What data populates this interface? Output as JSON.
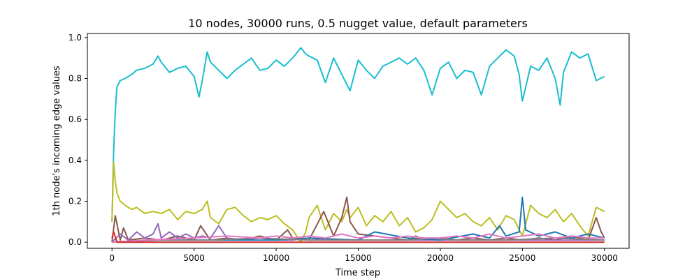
{
  "chart_data": {
    "type": "line",
    "title": "10 nodes, 30000 runs, 0.5 nugget value, default parameters",
    "xlabel": "Time step",
    "ylabel": "1th node's incoming edge values",
    "xlim": [
      -1500,
      31500
    ],
    "ylim": [
      -0.03,
      1.02
    ],
    "x_ticks": [
      0,
      5000,
      10000,
      15000,
      20000,
      25000,
      30000
    ],
    "x_tick_labels": [
      "0",
      "5000",
      "10000",
      "15000",
      "20000",
      "25000",
      "30000"
    ],
    "y_ticks": [
      0.0,
      0.2,
      0.4,
      0.6,
      0.8,
      1.0
    ],
    "y_tick_labels": [
      "0.0",
      "0.2",
      "0.4",
      "0.6",
      "0.8",
      "1.0"
    ],
    "grid": false,
    "legend": "none",
    "series": [
      {
        "color": "#17becf",
        "x": [
          0,
          100,
          200,
          300,
          500,
          800,
          1200,
          1500,
          2000,
          2500,
          2800,
          3000,
          3500,
          4000,
          4500,
          5000,
          5300,
          5500,
          5800,
          6000,
          6500,
          7000,
          7500,
          8000,
          8500,
          9000,
          9500,
          10000,
          10500,
          11000,
          11500,
          11800,
          12000,
          12500,
          13000,
          13500,
          14000,
          14500,
          15000,
          15500,
          16000,
          16500,
          17000,
          17500,
          18000,
          18500,
          19000,
          19500,
          20000,
          20500,
          21000,
          21500,
          22000,
          22500,
          23000,
          23500,
          24000,
          24500,
          24800,
          25000,
          25500,
          26000,
          26500,
          27000,
          27300,
          27500,
          28000,
          28500,
          29000,
          29500,
          30000
        ],
        "y": [
          0.1,
          0.45,
          0.64,
          0.76,
          0.79,
          0.8,
          0.82,
          0.84,
          0.85,
          0.87,
          0.91,
          0.88,
          0.83,
          0.85,
          0.86,
          0.81,
          0.71,
          0.79,
          0.93,
          0.88,
          0.84,
          0.8,
          0.84,
          0.87,
          0.9,
          0.84,
          0.85,
          0.89,
          0.86,
          0.9,
          0.95,
          0.92,
          0.91,
          0.89,
          0.78,
          0.9,
          0.82,
          0.74,
          0.89,
          0.84,
          0.8,
          0.86,
          0.88,
          0.9,
          0.87,
          0.9,
          0.84,
          0.72,
          0.85,
          0.88,
          0.8,
          0.84,
          0.83,
          0.72,
          0.86,
          0.9,
          0.94,
          0.91,
          0.82,
          0.69,
          0.86,
          0.84,
          0.9,
          0.8,
          0.67,
          0.83,
          0.93,
          0.9,
          0.92,
          0.79,
          0.81
        ]
      },
      {
        "color": "#bcbd22",
        "x": [
          0,
          100,
          200,
          300,
          500,
          800,
          1200,
          1500,
          2000,
          2500,
          3000,
          3500,
          4000,
          4500,
          5000,
          5500,
          5800,
          6000,
          6500,
          7000,
          7500,
          8000,
          8500,
          9000,
          9500,
          10000,
          10500,
          11000,
          11500,
          11800,
          12000,
          12500,
          13000,
          13500,
          14000,
          14300,
          14500,
          15000,
          15500,
          16000,
          16500,
          17000,
          17500,
          18000,
          18500,
          19000,
          19500,
          20000,
          20500,
          21000,
          21500,
          22000,
          22500,
          23000,
          23500,
          24000,
          24500,
          25000,
          25500,
          26000,
          26500,
          27000,
          27500,
          28000,
          28500,
          29000,
          29500,
          30000
        ],
        "y": [
          0.1,
          0.39,
          0.3,
          0.24,
          0.2,
          0.18,
          0.16,
          0.17,
          0.14,
          0.15,
          0.14,
          0.16,
          0.11,
          0.15,
          0.14,
          0.16,
          0.2,
          0.12,
          0.09,
          0.16,
          0.17,
          0.13,
          0.1,
          0.12,
          0.11,
          0.13,
          0.09,
          0.06,
          0.0,
          0.05,
          0.12,
          0.18,
          0.06,
          0.14,
          0.1,
          0.16,
          0.12,
          0.17,
          0.08,
          0.13,
          0.1,
          0.15,
          0.08,
          0.12,
          0.05,
          0.07,
          0.11,
          0.2,
          0.16,
          0.12,
          0.14,
          0.1,
          0.08,
          0.12,
          0.06,
          0.13,
          0.11,
          0.03,
          0.18,
          0.14,
          0.12,
          0.16,
          0.1,
          0.14,
          0.08,
          0.03,
          0.17,
          0.15
        ]
      },
      {
        "color": "#8c564b",
        "x": [
          0,
          200,
          500,
          700,
          1000,
          2000,
          3000,
          4000,
          5000,
          5400,
          6000,
          7000,
          8000,
          9000,
          10000,
          10700,
          11000,
          12000,
          12900,
          13500,
          14000,
          14300,
          14500,
          15000,
          16000,
          17000,
          18000,
          18500,
          19000,
          20000,
          21000,
          22000,
          23000,
          24000,
          25000,
          26000,
          27000,
          28000,
          29000,
          29500,
          29800,
          30000
        ],
        "y": [
          0.0,
          0.13,
          0.01,
          0.07,
          0.01,
          0.02,
          0.01,
          0.03,
          0.01,
          0.08,
          0.01,
          0.02,
          0.01,
          0.03,
          0.01,
          0.06,
          0.02,
          0.01,
          0.15,
          0.03,
          0.12,
          0.22,
          0.1,
          0.04,
          0.03,
          0.02,
          0.01,
          0.03,
          0.01,
          0.02,
          0.01,
          0.02,
          0.01,
          0.02,
          0.01,
          0.02,
          0.01,
          0.03,
          0.01,
          0.12,
          0.05,
          0.02
        ]
      },
      {
        "color": "#9467bd",
        "x": [
          0,
          500,
          1000,
          1500,
          2000,
          2500,
          2800,
          3000,
          3500,
          4000,
          4500,
          5000,
          5500,
          6000,
          6500,
          7000,
          8000,
          9000,
          10000,
          11000,
          12000,
          13000,
          14000,
          15000,
          16000,
          17000,
          18000,
          19000,
          20000,
          21000,
          22000,
          23000,
          24000,
          25000,
          26000,
          27000,
          28000,
          29000,
          30000
        ],
        "y": [
          0.0,
          0.04,
          0.01,
          0.05,
          0.02,
          0.04,
          0.09,
          0.02,
          0.05,
          0.02,
          0.04,
          0.02,
          0.03,
          0.02,
          0.08,
          0.02,
          0.01,
          0.02,
          0.01,
          0.01,
          0.02,
          0.01,
          0.01,
          0.01,
          0.01,
          0.01,
          0.01,
          0.01,
          0.01,
          0.01,
          0.01,
          0.01,
          0.01,
          0.01,
          0.01,
          0.01,
          0.01,
          0.01,
          0.01
        ]
      },
      {
        "color": "#1f77b4",
        "x": [
          0,
          2000,
          5000,
          8000,
          10000,
          12000,
          15000,
          16000,
          18000,
          20000,
          22000,
          23000,
          23600,
          24000,
          24800,
          25000,
          25200,
          26000,
          27000,
          28000,
          29000,
          30000
        ],
        "y": [
          0.0,
          0.01,
          0.01,
          0.01,
          0.01,
          0.02,
          0.01,
          0.05,
          0.02,
          0.01,
          0.04,
          0.02,
          0.08,
          0.03,
          0.05,
          0.22,
          0.06,
          0.03,
          0.05,
          0.02,
          0.04,
          0.02
        ]
      },
      {
        "color": "#7f7f7f",
        "x": [
          0,
          3000,
          6000,
          9000,
          12000,
          15000,
          18000,
          19500,
          21000,
          24000,
          27000,
          30000
        ],
        "y": [
          0.0,
          0.01,
          0.01,
          0.02,
          0.01,
          0.01,
          0.01,
          0.02,
          0.01,
          0.01,
          0.02,
          0.01
        ]
      },
      {
        "color": "#e377c2",
        "x": [
          0,
          2000,
          5000,
          7000,
          9000,
          10000,
          11000,
          12000,
          13000,
          14000,
          15000,
          16000,
          17000,
          18000,
          19000,
          20000,
          21000,
          22000,
          23000,
          24000,
          25000,
          26000,
          27000,
          28000,
          29000,
          30000
        ],
        "y": [
          0.0,
          0.01,
          0.02,
          0.03,
          0.02,
          0.03,
          0.02,
          0.03,
          0.02,
          0.04,
          0.02,
          0.03,
          0.02,
          0.03,
          0.02,
          0.02,
          0.03,
          0.02,
          0.04,
          0.02,
          0.03,
          0.04,
          0.02,
          0.03,
          0.02,
          0.02
        ]
      },
      {
        "color": "#d62728",
        "x": [
          0,
          100,
          300,
          30000
        ],
        "y": [
          0.02,
          0.05,
          0.0,
          0.0
        ]
      }
    ]
  }
}
